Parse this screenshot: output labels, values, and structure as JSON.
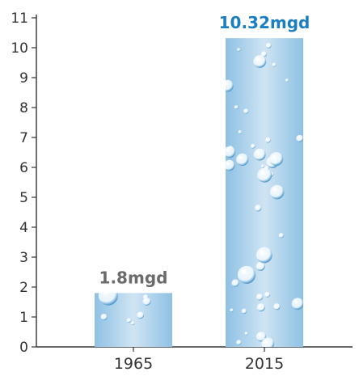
{
  "chart_data": {
    "type": "bar",
    "categories": [
      "1965",
      "2015"
    ],
    "values": [
      1.8,
      10.32
    ],
    "data_labels": [
      "1.8mgd",
      "10.32mgd"
    ],
    "ylim": [
      0,
      11
    ],
    "yticks": [
      "0",
      "1",
      "2",
      "3",
      "4",
      "5",
      "6",
      "7",
      "8",
      "9",
      "10",
      "11"
    ],
    "grid": false,
    "legend": "none",
    "colors": {
      "bar_light": "#cfe4f3",
      "bar_mid": "#8ec1e4",
      "bar_dark": "#5fa6d6",
      "drop": "#eef7fd",
      "drop_edge": "#3f8fc7",
      "label_1965": "#6b6b6b",
      "label_2015": "#1a7fc1",
      "axis": "#333333"
    }
  }
}
